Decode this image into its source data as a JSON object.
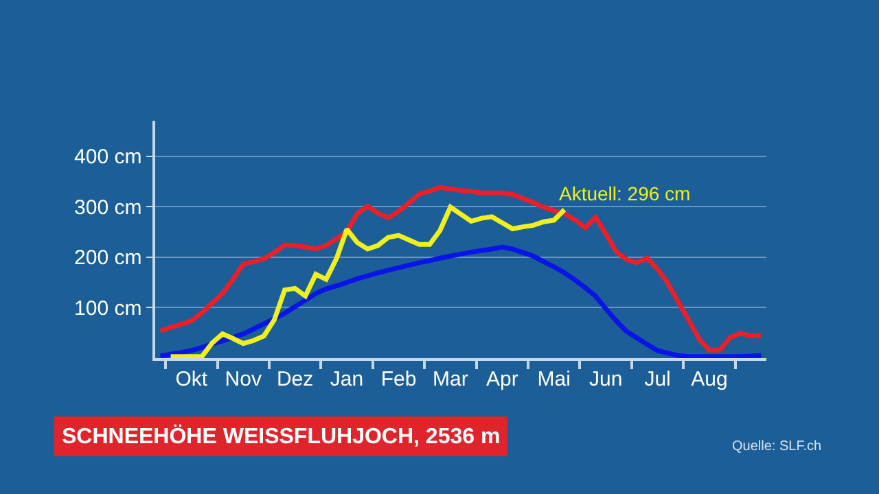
{
  "chart_data": {
    "type": "line",
    "title": "SCHNEEHÖHE WEISSFLUHJOCH, 2536 m",
    "annotations": [
      "Aktuell: 296 cm",
      "Quelle: SLF.ch"
    ],
    "categories": [
      null,
      null,
      null,
      "Okt",
      null,
      null,
      null,
      null,
      "Nov",
      null,
      null,
      null,
      null,
      "Dez",
      null,
      null,
      null,
      null,
      "Jan",
      null,
      null,
      null,
      null,
      "Feb",
      null,
      null,
      null,
      null,
      "Mar",
      null,
      null,
      null,
      null,
      "Apr",
      null,
      null,
      null,
      null,
      "Mai",
      null,
      null,
      null,
      null,
      "Jun",
      null,
      null,
      null,
      null,
      "Jul",
      null,
      null,
      null,
      null,
      "Aug",
      null,
      null,
      null,
      null,
      null
    ],
    "ylim": [
      0,
      470
    ],
    "yticks": [
      {
        "value": 100,
        "label": "100 cm"
      },
      {
        "value": 200,
        "label": "200 cm"
      },
      {
        "value": 300,
        "label": "300 cm"
      },
      {
        "value": 400,
        "label": "400 cm"
      }
    ],
    "grid": "y",
    "marker": "none",
    "line_style": "solid",
    "series": [
      {
        "color": "#e8202a",
        "values": [
          54,
          61,
          67,
          74,
          90,
          109,
          128,
          156,
          186,
          191,
          197,
          209,
          224,
          223,
          220,
          216,
          223,
          236,
          250,
          286,
          301,
          287,
          278,
          291,
          307,
          325,
          331,
          338,
          335,
          332,
          330,
          327,
          327,
          327,
          324,
          316,
          308,
          299,
          292,
          286,
          274,
          258,
          279,
          246,
          211,
          195,
          189,
          198,
          176,
          148,
          111,
          75,
          38,
          16,
          16,
          41,
          49,
          44,
          45
        ]
      },
      {
        "color": "#0a14e6",
        "values": [
          4,
          8,
          11,
          15,
          21,
          28,
          34,
          41,
          48,
          58,
          68,
          78,
          89,
          102,
          115,
          128,
          137,
          143,
          150,
          157,
          163,
          169,
          174,
          179,
          184,
          189,
          193,
          198,
          202,
          206,
          210,
          213,
          216,
          220,
          216,
          209,
          202,
          191,
          181,
          169,
          155,
          140,
          123,
          98,
          74,
          53,
          40,
          27,
          15,
          10,
          5,
          3,
          3,
          3,
          3,
          3,
          3,
          4,
          5
        ]
      },
      {
        "color": "#f0f020",
        "values": [
          null,
          3,
          3,
          3,
          3,
          30,
          48,
          39,
          29,
          35,
          44,
          76,
          135,
          138,
          123,
          166,
          156,
          197,
          255,
          229,
          216,
          223,
          239,
          243,
          234,
          225,
          225,
          253,
          299,
          285,
          271,
          277,
          280,
          268,
          256,
          260,
          263,
          270,
          273,
          294,
          null,
          null,
          null,
          null,
          null,
          null,
          null,
          null,
          null,
          null,
          null,
          null,
          null,
          null,
          null,
          null,
          null,
          null,
          null
        ]
      }
    ]
  }
}
